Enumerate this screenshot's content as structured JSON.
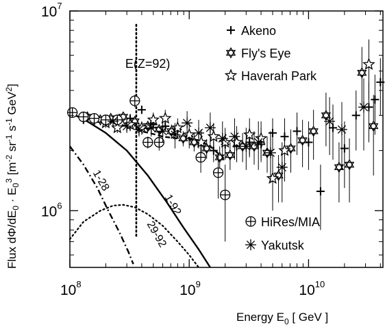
{
  "chart_data": {
    "type": "scatter",
    "title": "",
    "xscale": "log",
    "yscale": "log",
    "xlim": [
      100000000.0,
      42000000000.0
    ],
    "ylim": [
      520000.0,
      10000000.0
    ],
    "x_ticks": [
      {
        "value": 100000000.0,
        "base": "10",
        "exp": "8"
      },
      {
        "value": 1000000000.0,
        "base": "10",
        "exp": "9"
      },
      {
        "value": 10000000000.0,
        "base": "10",
        "exp": "10"
      }
    ],
    "y_ticks": [
      {
        "value": 1000000.0,
        "base": "10",
        "exp": "6"
      },
      {
        "value": 10000000.0,
        "base": "10",
        "exp": "7"
      }
    ],
    "xlabel": "Energy E₀ [ GeV ]",
    "xlabel_parts": {
      "main": "Energy E",
      "sub": "0",
      "rest": " [ GeV ]"
    },
    "ylabel": "Flux dΦ/dE₀ · E₀³ [m⁻² sr⁻¹ s⁻¹ GeV²]",
    "ylabel_parts": [
      {
        "t": "Flux dΦ/dE",
        "s": ""
      },
      {
        "t": "0",
        "s": "sub"
      },
      {
        "t": " · E",
        "s": ""
      },
      {
        "t": "0",
        "s": "sub"
      },
      {
        "t": "3",
        "s": "sup"
      },
      {
        "t": " [m",
        "s": ""
      },
      {
        "t": "-2",
        "s": "sup"
      },
      {
        "t": " sr",
        "s": ""
      },
      {
        "t": "-1",
        "s": "sup"
      },
      {
        "t": " s",
        "s": ""
      },
      {
        "t": "-1",
        "s": "sup"
      },
      {
        "t": " GeV",
        "s": ""
      },
      {
        "t": "2",
        "s": "sup"
      },
      {
        "t": "]",
        "s": ""
      }
    ],
    "vline": {
      "x": 360000000.0,
      "label": "E(Z=92)"
    },
    "legend": {
      "placement": "top-right",
      "items": [
        {
          "label": "Akeno",
          "marker": "plus"
        },
        {
          "label": "Fly's Eye",
          "marker": "hexagram"
        },
        {
          "label": "Haverah Park",
          "marker": "star"
        }
      ]
    },
    "legend2": {
      "placement": "bottom-right",
      "items": [
        {
          "label": "HiRes/MIA",
          "marker": "circleplus"
        },
        {
          "label": "Yakutsk",
          "marker": "asterisk"
        }
      ]
    },
    "curves": [
      {
        "name": "1-92",
        "style": "solid",
        "x": [
          100000000.0,
          140000000.0,
          200000000.0,
          300000000.0,
          450000000.0,
          650000000.0,
          900000000.0,
          1200000000.0,
          1500000000.0
        ],
        "y": [
          3100000.0,
          2800000.0,
          2450000.0,
          2000000.0,
          1500000.0,
          1100000.0,
          820000.0,
          640000.0,
          520000.0
        ]
      },
      {
        "name": "1-28",
        "style": "dashdot",
        "x": [
          100000000.0,
          130000000.0,
          170000000.0,
          210000000.0,
          260000000.0,
          310000000.0,
          340000000.0
        ],
        "y": [
          2100000.0,
          1700000.0,
          1300000.0,
          1000000.0,
          780000.0,
          620000.0,
          540000.0
        ]
      },
      {
        "name": "29-92",
        "style": "dotted",
        "x": [
          100000000.0,
          130000000.0,
          180000000.0,
          230000000.0,
          280000000.0,
          350000000.0,
          450000000.0,
          600000000.0,
          800000000.0,
          1000000000.0,
          1200000000.0
        ],
        "y": [
          720000.0,
          880000.0,
          1000000.0,
          1060000.0,
          1070000.0,
          1040000.0,
          960000.0,
          840000.0,
          700000.0,
          600000.0,
          520000.0
        ]
      },
      {
        "name": "",
        "style": "dashed",
        "x": [
          100000000.0,
          150000000.0,
          200000000.0,
          300000000.0,
          400000000.0,
          500000000.0,
          600000000.0,
          800000000.0,
          1000000000.0,
          1200000000.0,
          1500000000.0,
          2000000000.0
        ],
        "y": [
          3000000.0,
          2900000.0,
          2800000.0,
          2650000.0,
          2500000.0,
          2420000.0,
          2350000.0,
          2300000.0,
          2300000.0,
          2250000.0,
          2100000.0,
          1800000.0
        ]
      }
    ],
    "series": [
      {
        "name": "Akeno",
        "marker": "plus",
        "points": [
          {
            "x": 130000000.0,
            "y": 2850000.0,
            "ylo": 2800000.0,
            "yhi": 2900000.0
          },
          {
            "x": 160000000.0,
            "y": 2820000.0,
            "ylo": 2750000.0,
            "yhi": 2900000.0
          },
          {
            "x": 200000000.0,
            "y": 2800000.0,
            "ylo": 2720000.0,
            "yhi": 2880000.0
          },
          {
            "x": 250000000.0,
            "y": 2800000.0,
            "ylo": 2720000.0,
            "yhi": 2900000.0
          },
          {
            "x": 320000000.0,
            "y": 2900000.0,
            "ylo": 2800000.0,
            "yhi": 3000000.0
          },
          {
            "x": 400000000.0,
            "y": 3200000.0,
            "ylo": 3050000.0,
            "yhi": 3350000.0
          },
          {
            "x": 500000000.0,
            "y": 2700000.0,
            "ylo": 2550000.0,
            "yhi": 2850000.0
          },
          {
            "x": 630000000.0,
            "y": 2650000.0,
            "ylo": 2500000.0,
            "yhi": 2800000.0
          },
          {
            "x": 800000000.0,
            "y": 2550000.0,
            "ylo": 2350000.0,
            "yhi": 2750000.0
          },
          {
            "x": 1000000000.0,
            "y": 2350000.0,
            "ylo": 2150000.0,
            "yhi": 2550000.0
          },
          {
            "x": 1260000000.0,
            "y": 2200000.0,
            "ylo": 1950000.0,
            "yhi": 2450000.0
          },
          {
            "x": 1600000000.0,
            "y": 2000000.0,
            "ylo": 1750000.0,
            "yhi": 2250000.0
          },
          {
            "x": 2000000000.0,
            "y": 2150000.0,
            "ylo": 1850000.0,
            "yhi": 2450000.0
          },
          {
            "x": 2500000000.0,
            "y": 2100000.0,
            "ylo": 1750000.0,
            "yhi": 2450000.0
          },
          {
            "x": 3200000000.0,
            "y": 2200000.0,
            "ylo": 1850000.0,
            "yhi": 2600000.0
          },
          {
            "x": 4000000000.0,
            "y": 2150000.0,
            "ylo": 1750000.0,
            "yhi": 2600000.0
          },
          {
            "x": 5000000000.0,
            "y": 2450000.0,
            "ylo": 2000000.0,
            "yhi": 2900000.0
          },
          {
            "x": 6300000000.0,
            "y": 2350000.0,
            "ylo": 1850000.0,
            "yhi": 2900000.0
          },
          {
            "x": 8000000000.0,
            "y": 2500000.0,
            "ylo": 1900000.0,
            "yhi": 3100000.0
          },
          {
            "x": 10000000000.0,
            "y": 2200000.0,
            "ylo": 1600000.0,
            "yhi": 2800000.0
          },
          {
            "x": 12600000000.0,
            "y": 1250000.0,
            "ylo": 800000.0,
            "yhi": 1700000.0
          },
          {
            "x": 16000000000.0,
            "y": 2600000.0,
            "ylo": 1800000.0,
            "yhi": 3400000.0
          },
          {
            "x": 20000000000.0,
            "y": 2050000.0,
            "ylo": 1300000.0,
            "yhi": 2800000.0
          },
          {
            "x": 25000000000.0,
            "y": 3000000.0,
            "ylo": 2000000.0,
            "yhi": 4000000.0
          },
          {
            "x": 32000000000.0,
            "y": 3300000.0,
            "ylo": 2200000.0,
            "yhi": 4400000.0
          },
          {
            "x": 36000000000.0,
            "y": 3600000.0,
            "ylo": 2400000.0,
            "yhi": 4800000.0
          },
          {
            "x": 40000000000.0,
            "y": 4400000.0,
            "ylo": 3000000.0,
            "yhi": 5800000.0
          }
        ]
      },
      {
        "name": "Fly's Eye",
        "marker": "hexagram",
        "points": [
          {
            "x": 140000000.0,
            "y": 2950000.0,
            "ylo": 2850000.0,
            "yhi": 3050000.0
          },
          {
            "x": 180000000.0,
            "y": 2850000.0,
            "ylo": 2750000.0,
            "yhi": 2950000.0
          },
          {
            "x": 220000000.0,
            "y": 2900000.0,
            "ylo": 2800000.0,
            "yhi": 3000000.0
          },
          {
            "x": 280000000.0,
            "y": 2950000.0,
            "ylo": 2850000.0,
            "yhi": 3050000.0
          },
          {
            "x": 350000000.0,
            "y": 2800000.0,
            "ylo": 2700000.0,
            "yhi": 2900000.0
          },
          {
            "x": 450000000.0,
            "y": 2650000.0,
            "ylo": 2500000.0,
            "yhi": 2800000.0
          },
          {
            "x": 560000000.0,
            "y": 2550000.0,
            "ylo": 2400000.0,
            "yhi": 2700000.0
          },
          {
            "x": 710000000.0,
            "y": 2500000.0,
            "ylo": 2300000.0,
            "yhi": 2700000.0
          },
          {
            "x": 890000000.0,
            "y": 2300000.0,
            "ylo": 2100000.0,
            "yhi": 2500000.0
          },
          {
            "x": 1100000000.0,
            "y": 2200000.0,
            "ylo": 1980000.0,
            "yhi": 2420000.0
          },
          {
            "x": 1400000000.0,
            "y": 2050000.0,
            "ylo": 1820000.0,
            "yhi": 2280000.0
          },
          {
            "x": 1800000000.0,
            "y": 1850000.0,
            "ylo": 1600000.0,
            "yhi": 2100000.0
          },
          {
            "x": 2200000000.0,
            "y": 1900000.0,
            "ylo": 1600000.0,
            "yhi": 2200000.0
          },
          {
            "x": 2800000000.0,
            "y": 2100000.0,
            "ylo": 1750000.0,
            "yhi": 2450000.0
          },
          {
            "x": 3500000000.0,
            "y": 2100000.0,
            "ylo": 1700000.0,
            "yhi": 2500000.0
          },
          {
            "x": 4500000000.0,
            "y": 1950000.0,
            "ylo": 1550000.0,
            "yhi": 2350000.0
          },
          {
            "x": 5600000000.0,
            "y": 1500000.0,
            "ylo": 1100000.0,
            "yhi": 1900000.0
          },
          {
            "x": 7100000000.0,
            "y": 2050000.0,
            "ylo": 1550000.0,
            "yhi": 2550000.0
          },
          {
            "x": 8900000000.0,
            "y": 2250000.0,
            "ylo": 1650000.0,
            "yhi": 2850000.0
          },
          {
            "x": 11000000000.0,
            "y": 2500000.0,
            "ylo": 1800000.0,
            "yhi": 3200000.0
          },
          {
            "x": 14000000000.0,
            "y": 3000000.0,
            "ylo": 2100000.0,
            "yhi": 3900000.0
          },
          {
            "x": 18000000000.0,
            "y": 1650000.0,
            "ylo": 1100000.0,
            "yhi": 2200000.0
          },
          {
            "x": 22000000000.0,
            "y": 1700000.0,
            "ylo": 1100000.0,
            "yhi": 2300000.0
          },
          {
            "x": 28000000000.0,
            "y": 4900000.0,
            "ylo": 3200000.0,
            "yhi": 6600000.0
          },
          {
            "x": 35000000000.0,
            "y": 2650000.0,
            "ylo": 1500000.0,
            "yhi": 3800000.0
          }
        ]
      },
      {
        "name": "Haverah Park",
        "marker": "star",
        "points": [
          {
            "x": 200000000.0,
            "y": 2750000.0,
            "ylo": 2600000.0,
            "yhi": 2900000.0
          },
          {
            "x": 250000000.0,
            "y": 2600000.0,
            "ylo": 2450000.0,
            "yhi": 2750000.0
          },
          {
            "x": 320000000.0,
            "y": 2700000.0,
            "ylo": 2500000.0,
            "yhi": 2900000.0
          },
          {
            "x": 400000000.0,
            "y": 2600000.0,
            "ylo": 2400000.0,
            "yhi": 2800000.0
          },
          {
            "x": 500000000.0,
            "y": 2850000.0,
            "ylo": 2600000.0,
            "yhi": 3100000.0
          },
          {
            "x": 630000000.0,
            "y": 2900000.0,
            "ylo": 2600000.0,
            "yhi": 3200000.0
          },
          {
            "x": 800000000.0,
            "y": 2600000.0,
            "ylo": 2300000.0,
            "yhi": 2900000.0
          },
          {
            "x": 1000000000.0,
            "y": 2400000.0,
            "ylo": 2050000.0,
            "yhi": 2750000.0
          },
          {
            "x": 1260000000.0,
            "y": 2200000.0,
            "ylo": 1850000.0,
            "yhi": 2550000.0
          },
          {
            "x": 1600000000.0,
            "y": 2350000.0,
            "ylo": 1950000.0,
            "yhi": 2750000.0
          },
          {
            "x": 2000000000.0,
            "y": 2200000.0,
            "ylo": 1800000.0,
            "yhi": 2600000.0
          },
          {
            "x": 2500000000.0,
            "y": 2200000.0,
            "ylo": 1750000.0,
            "yhi": 2650000.0
          },
          {
            "x": 3200000000.0,
            "y": 2400000.0,
            "ylo": 1900000.0,
            "yhi": 2900000.0
          },
          {
            "x": 4000000000.0,
            "y": 2300000.0,
            "ylo": 1800000.0,
            "yhi": 2800000.0
          },
          {
            "x": 5000000000.0,
            "y": 1450000.0,
            "ylo": 1000000.0,
            "yhi": 1900000.0
          },
          {
            "x": 6300000000.0,
            "y": 2000000.0,
            "ylo": 1400000.0,
            "yhi": 2600000.0
          },
          {
            "x": 32000000000.0,
            "y": 5400000.0,
            "ylo": 3600000.0,
            "yhi": 7200000.0
          }
        ]
      },
      {
        "name": "HiRes/MIA",
        "marker": "circleplus",
        "points": [
          {
            "x": 105000000.0,
            "y": 3100000.0,
            "ylo": 3000000.0,
            "yhi": 3200000.0
          },
          {
            "x": 130000000.0,
            "y": 2950000.0,
            "ylo": 2850000.0,
            "yhi": 3050000.0
          },
          {
            "x": 160000000.0,
            "y": 2900000.0,
            "ylo": 2800000.0,
            "yhi": 3000000.0
          },
          {
            "x": 200000000.0,
            "y": 2850000.0,
            "ylo": 2750000.0,
            "yhi": 2950000.0
          },
          {
            "x": 250000000.0,
            "y": 2850000.0,
            "ylo": 2750000.0,
            "yhi": 2950000.0
          },
          {
            "x": 350000000.0,
            "y": 3550000.0,
            "ylo": 3300000.0,
            "yhi": 3800000.0
          },
          {
            "x": 450000000.0,
            "y": 2200000.0,
            "ylo": 2050000.0,
            "yhi": 2350000.0
          },
          {
            "x": 560000000.0,
            "y": 2200000.0,
            "ylo": 2000000.0,
            "yhi": 2400000.0
          },
          {
            "x": 1250000000.0,
            "y": 1850000.0,
            "ylo": 1550000.0,
            "yhi": 2150000.0
          },
          {
            "x": 1750000000.0,
            "y": 1550000.0,
            "ylo": 1150000.0,
            "yhi": 1950000.0
          },
          {
            "x": 2000000000.0,
            "y": 1200000.0,
            "ylo": 700000.0,
            "yhi": 1700000.0
          }
        ]
      },
      {
        "name": "Yakutsk",
        "marker": "asterisk",
        "points": [
          {
            "x": 230000000.0,
            "y": 2800000.0,
            "ylo": 2600000.0,
            "yhi": 3000000.0
          },
          {
            "x": 300000000.0,
            "y": 2650000.0,
            "ylo": 2450000.0,
            "yhi": 2850000.0
          },
          {
            "x": 380000000.0,
            "y": 2550000.0,
            "ylo": 2350000.0,
            "yhi": 2750000.0
          },
          {
            "x": 480000000.0,
            "y": 2600000.0,
            "ylo": 2350000.0,
            "yhi": 2850000.0
          },
          {
            "x": 600000000.0,
            "y": 2500000.0,
            "ylo": 2200000.0,
            "yhi": 2800000.0
          },
          {
            "x": 760000000.0,
            "y": 2400000.0,
            "ylo": 2050000.0,
            "yhi": 2750000.0
          },
          {
            "x": 960000000.0,
            "y": 2750000.0,
            "ylo": 2350000.0,
            "yhi": 3150000.0
          },
          {
            "x": 1200000000.0,
            "y": 2450000.0,
            "ylo": 2050000.0,
            "yhi": 2850000.0
          },
          {
            "x": 1500000000.0,
            "y": 2600000.0,
            "ylo": 2100000.0,
            "yhi": 3100000.0
          },
          {
            "x": 1900000000.0,
            "y": 2300000.0,
            "ylo": 1800000.0,
            "yhi": 2800000.0
          },
          {
            "x": 2400000000.0,
            "y": 2350000.0,
            "ylo": 1800000.0,
            "yhi": 2900000.0
          },
          {
            "x": 3000000000.0,
            "y": 2100000.0,
            "ylo": 1600000.0,
            "yhi": 2600000.0
          },
          {
            "x": 3800000000.0,
            "y": 2200000.0,
            "ylo": 1600000.0,
            "yhi": 2800000.0
          },
          {
            "x": 4800000000.0,
            "y": 1950000.0,
            "ylo": 1400000.0,
            "yhi": 2500000.0
          },
          {
            "x": 6000000000.0,
            "y": 1650000.0,
            "ylo": 1100000.0,
            "yhi": 2200000.0
          },
          {
            "x": 15000000000.0,
            "y": 2800000.0,
            "ylo": 1900000.0,
            "yhi": 3700000.0
          },
          {
            "x": 19000000000.0,
            "y": 2550000.0,
            "ylo": 1600000.0,
            "yhi": 3500000.0
          },
          {
            "x": 29000000000.0,
            "y": 3300000.0,
            "ylo": 2000000.0,
            "yhi": 4600000.0
          }
        ]
      }
    ]
  }
}
